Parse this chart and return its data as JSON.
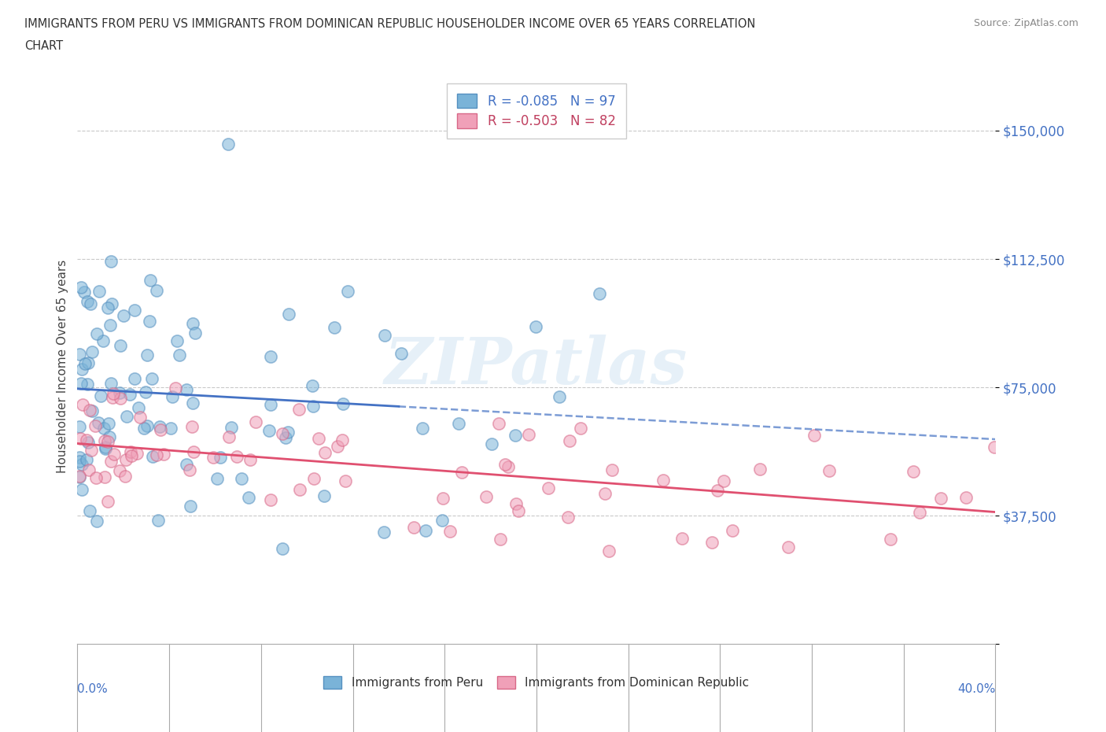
{
  "title_line1": "IMMIGRANTS FROM PERU VS IMMIGRANTS FROM DOMINICAN REPUBLIC HOUSEHOLDER INCOME OVER 65 YEARS CORRELATION",
  "title_line2": "CHART",
  "source": "Source: ZipAtlas.com",
  "ylabel": "Householder Income Over 65 years",
  "xlim": [
    0.0,
    0.4
  ],
  "ylim": [
    0,
    162500
  ],
  "yticks": [
    0,
    37500,
    75000,
    112500,
    150000
  ],
  "ytick_labels": [
    "",
    "$37,500",
    "$75,000",
    "$112,500",
    "$150,000"
  ],
  "grid_color": "#bbbbbb",
  "background_color": "#ffffff",
  "watermark": "ZIPatlas",
  "peru_color": "#7ab3d8",
  "peru_edge": "#5590c0",
  "dr_color": "#f0a0b8",
  "dr_edge": "#d86888",
  "trend_peru_color": "#4472c4",
  "trend_dr_color": "#e05070",
  "series": [
    {
      "name": "Immigrants from Peru",
      "R": -0.085,
      "N": 97,
      "R_label": "R = -0.085",
      "N_label": "N = 97"
    },
    {
      "name": "Immigrants from Dominican Republic",
      "R": -0.503,
      "N": 82,
      "R_label": "R = -0.503",
      "N_label": "N = 82"
    }
  ]
}
